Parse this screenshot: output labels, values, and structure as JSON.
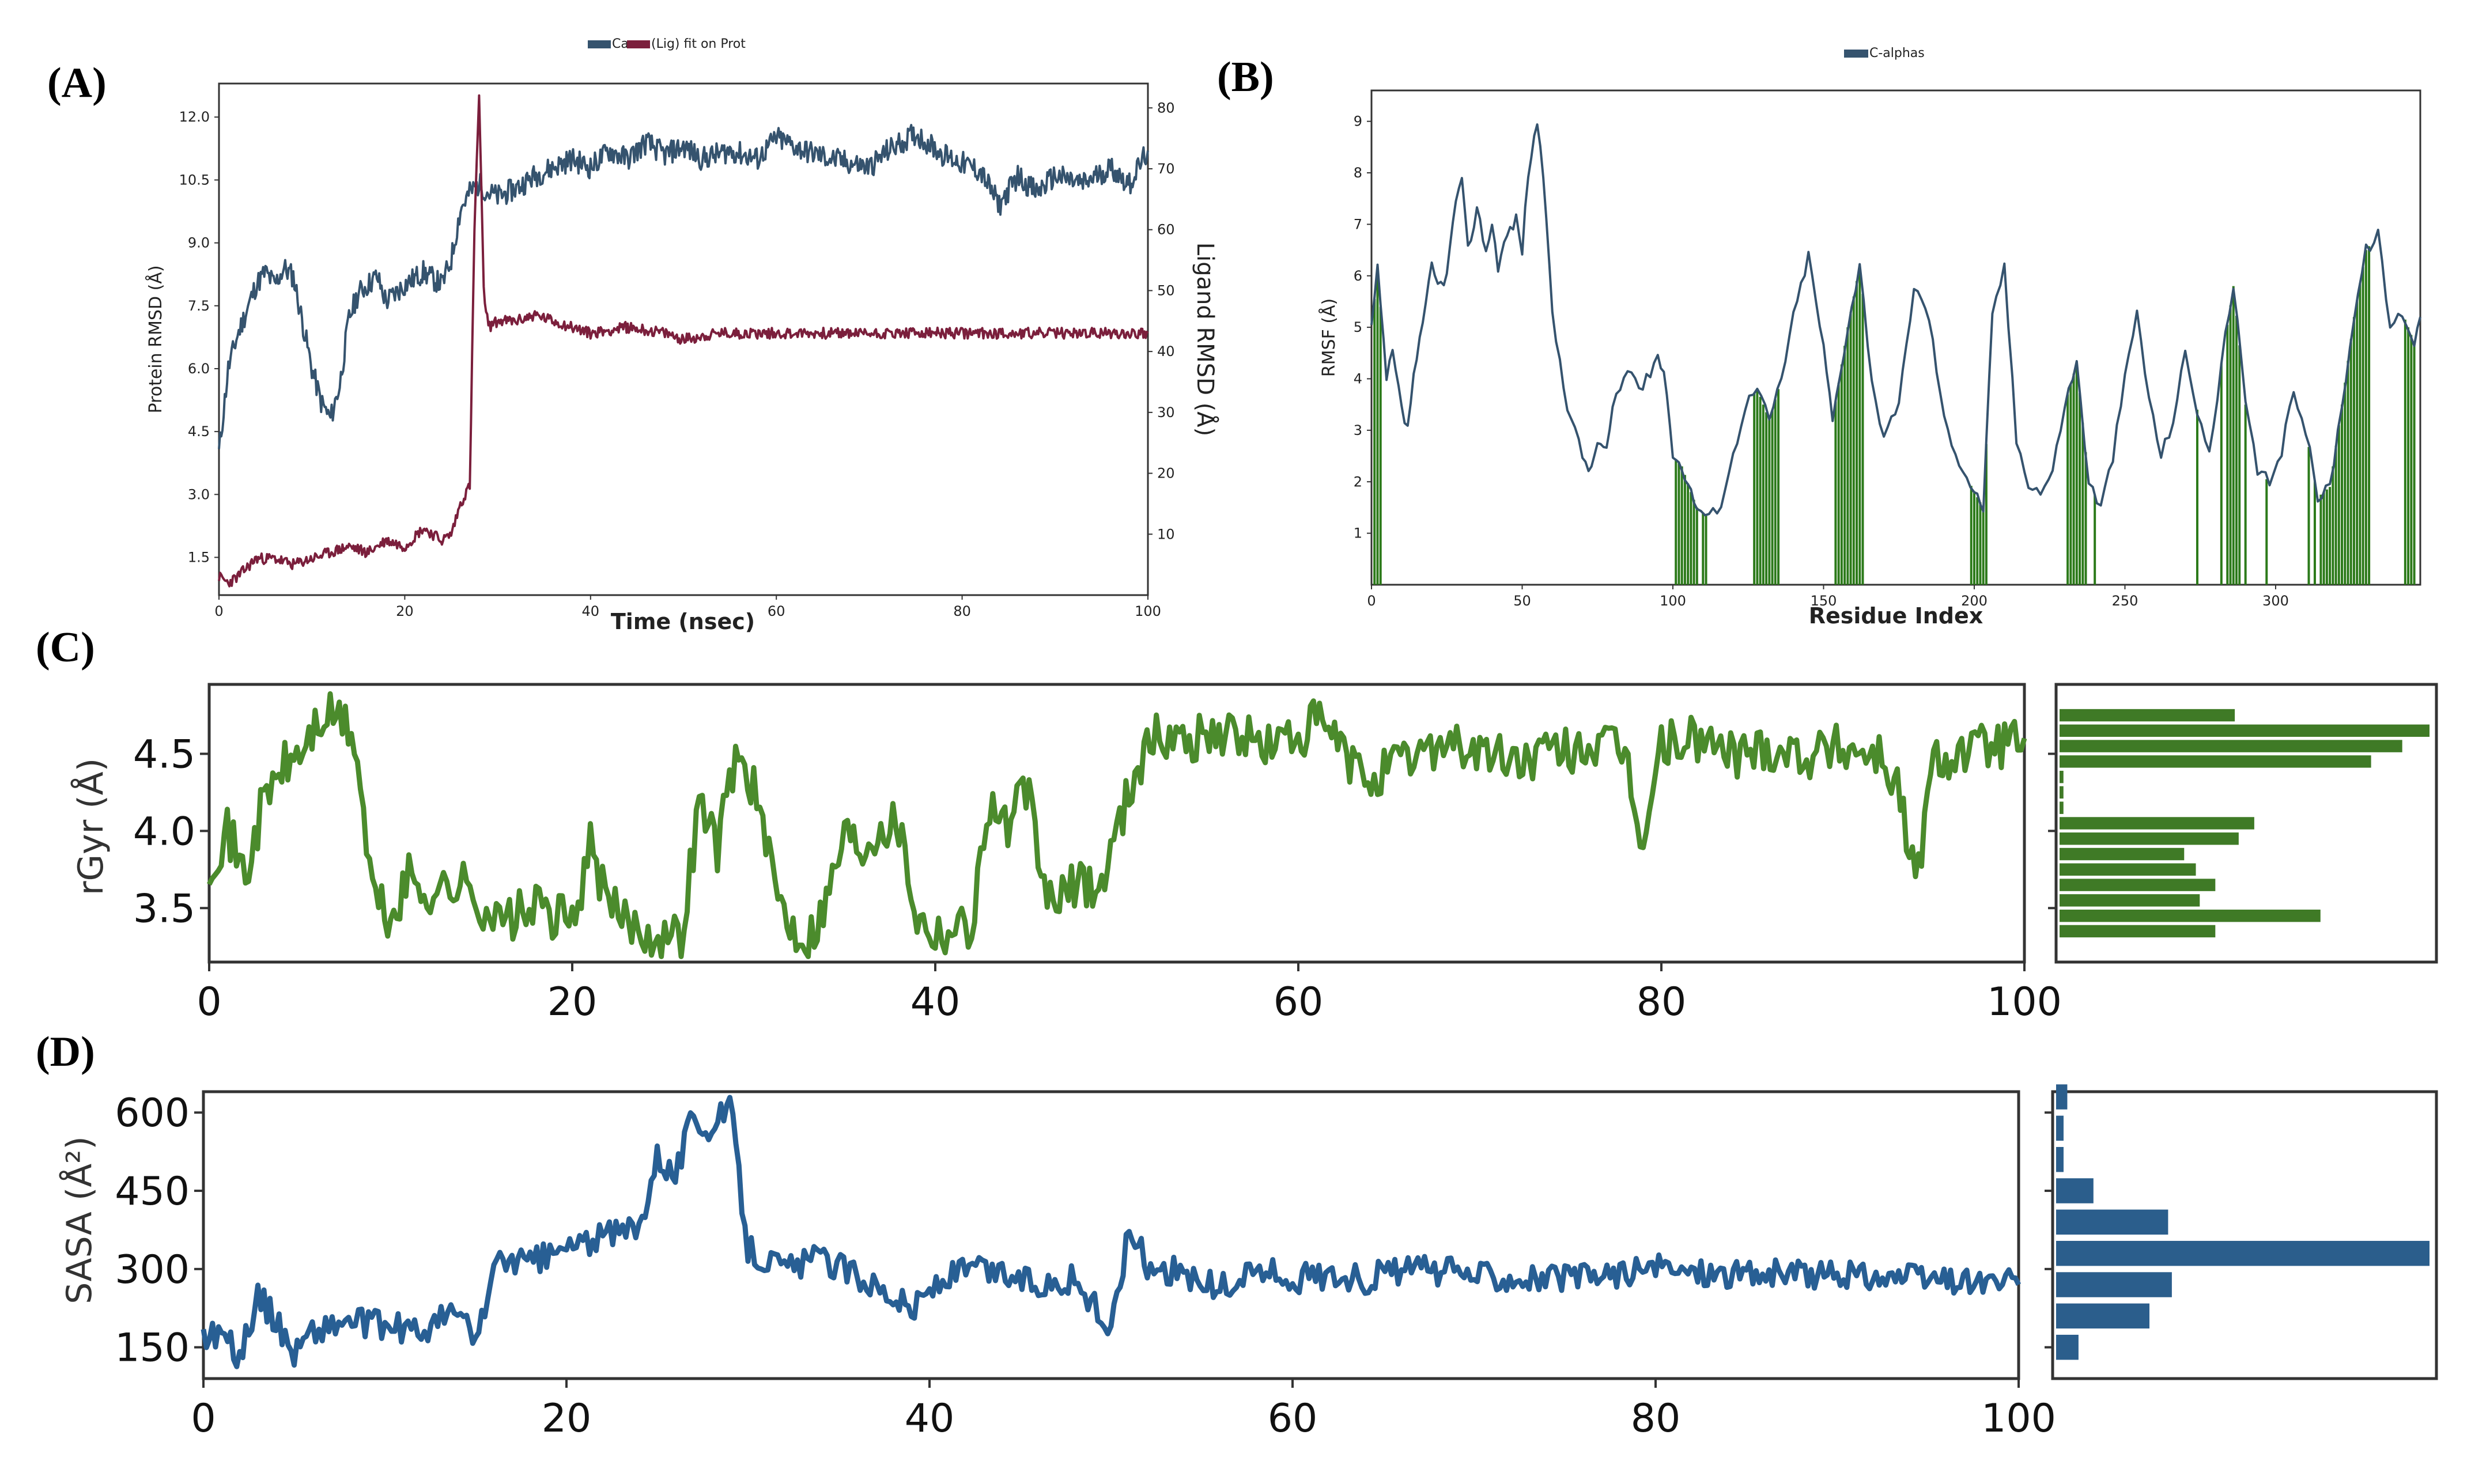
{
  "figure": {
    "colors": {
      "protein": "#35536e",
      "ligand": "#7b1f3c",
      "rmsf": "#35536e",
      "contact": "#2c7a1a",
      "rgyr": "#4b8b2c",
      "rgyr_hist": "#3f7a26",
      "sasa": "#285f94",
      "sasa_hist": "#2b5e8c"
    }
  },
  "chart_data": [
    {
      "id": "A",
      "panel_label": "(A)",
      "type": "line",
      "legend": [
        "Ca",
        "(Lig) fit on Prot"
      ],
      "xlabel": "Time (nsec)",
      "ylabel": "Protein RMSD (Å)",
      "y2label": "Ligand RMSD (Å)",
      "xlim": [
        0,
        100
      ],
      "ylim": [
        0.6,
        12.8
      ],
      "y2lim": [
        0,
        84
      ],
      "xticks": [
        0,
        20,
        40,
        60,
        80,
        100
      ],
      "yticks": [
        "1.5",
        "3.0",
        "4.5",
        "6.0",
        "7.5",
        "9.0",
        "10.5",
        "12.0"
      ],
      "y2ticks": [
        10,
        20,
        30,
        40,
        50,
        60,
        70,
        80
      ],
      "series": [
        {
          "name": "Ca",
          "axis": "left",
          "x": [
            0,
            1,
            2,
            3,
            4,
            5,
            6,
            7,
            8,
            10,
            11,
            12,
            13,
            14,
            15,
            17,
            18,
            20,
            22,
            24,
            25,
            26,
            27,
            28,
            29,
            30,
            32,
            34,
            36,
            38,
            40,
            42,
            44,
            46,
            48,
            50,
            52,
            55,
            58,
            60,
            63,
            66,
            70,
            72,
            75,
            78,
            80,
            82,
            84,
            86,
            88,
            90,
            93,
            96,
            98,
            100
          ],
          "y": [
            4.0,
            6.0,
            6.8,
            7.4,
            8.0,
            8.3,
            8.0,
            8.4,
            8.2,
            6.0,
            5.2,
            4.8,
            5.6,
            7.2,
            7.8,
            8.2,
            7.6,
            8.0,
            8.3,
            8.0,
            8.6,
            9.8,
            10.2,
            10.4,
            10.2,
            10.1,
            10.3,
            10.6,
            10.8,
            11.0,
            10.8,
            11.2,
            11.0,
            11.4,
            11.1,
            11.3,
            11.0,
            11.2,
            11.0,
            11.5,
            11.2,
            11.0,
            10.8,
            11.2,
            11.6,
            11.1,
            10.9,
            10.7,
            9.9,
            10.6,
            10.2,
            10.6,
            10.4,
            10.8,
            10.4,
            11.2
          ]
        },
        {
          "name": "(Lig) fit on Prot",
          "axis": "right",
          "x": [
            0,
            1,
            2,
            4,
            6,
            8,
            10,
            12,
            14,
            16,
            18,
            20,
            22,
            24,
            25,
            26,
            27,
            27.5,
            28,
            28.5,
            29,
            30,
            32,
            34,
            36,
            38,
            40,
            44,
            48,
            50,
            54,
            60,
            70,
            80,
            90,
            100
          ],
          "y": [
            3,
            2,
            3,
            6,
            6,
            5,
            6,
            7,
            8,
            7,
            9,
            8,
            11,
            9,
            10,
            15,
            18,
            60,
            82,
            50,
            44,
            45,
            45,
            46,
            45,
            44,
            43,
            44,
            43,
            42,
            43,
            43,
            43,
            43,
            43,
            43
          ]
        }
      ]
    },
    {
      "id": "B",
      "panel_label": "(B)",
      "type": "line",
      "legend": [
        "C-alphas"
      ],
      "xlabel": "Residue Index",
      "ylabel": "RMSF (Å)",
      "xlim": [
        0,
        348
      ],
      "ylim": [
        0,
        9.6
      ],
      "xticks": [
        0,
        50,
        100,
        150,
        200,
        250,
        300
      ],
      "yticks": [
        1,
        2,
        3,
        4,
        5,
        6,
        7,
        8,
        9
      ],
      "series": [
        {
          "name": "C-alphas",
          "x": [
            0,
            2,
            5,
            7,
            10,
            12,
            14,
            17,
            20,
            22,
            25,
            28,
            30,
            32,
            35,
            38,
            40,
            42,
            45,
            48,
            50,
            52,
            55,
            58,
            60,
            65,
            70,
            73,
            75,
            78,
            80,
            85,
            90,
            95,
            98,
            100,
            103,
            106,
            108,
            112,
            116,
            120,
            124,
            128,
            132,
            136,
            140,
            145,
            150,
            153,
            158,
            162,
            166,
            170,
            175,
            180,
            185,
            190,
            195,
            200,
            203,
            206,
            210,
            214,
            218,
            222,
            226,
            230,
            234,
            238,
            242,
            246,
            250,
            254,
            258,
            262,
            266,
            270,
            274,
            278,
            282,
            286,
            290,
            294,
            298,
            302,
            306,
            310,
            314,
            318,
            322,
            326,
            330,
            334,
            338,
            342,
            346,
            348
          ],
          "y": [
            5.0,
            6.1,
            4.0,
            4.5,
            3.4,
            3.0,
            4.1,
            5.0,
            6.2,
            5.8,
            6.0,
            7.5,
            7.8,
            6.5,
            7.3,
            6.5,
            7.0,
            6.2,
            6.8,
            7.1,
            6.5,
            8.0,
            9.0,
            7.2,
            5.2,
            3.5,
            2.5,
            2.2,
            2.8,
            2.6,
            3.4,
            4.2,
            3.8,
            4.5,
            3.8,
            2.5,
            2.3,
            1.8,
            1.5,
            1.3,
            1.6,
            2.5,
            3.5,
            3.8,
            3.2,
            4.0,
            5.2,
            6.4,
            4.6,
            3.2,
            5.0,
            6.2,
            4.0,
            2.8,
            3.5,
            5.8,
            5.2,
            3.2,
            2.4,
            1.8,
            1.5,
            5.2,
            6.2,
            2.8,
            2.0,
            1.8,
            2.2,
            3.5,
            4.3,
            2.0,
            1.5,
            2.5,
            4.0,
            5.3,
            3.6,
            2.5,
            3.2,
            4.5,
            3.4,
            2.5,
            4.3,
            5.8,
            3.5,
            2.2,
            2.0,
            2.6,
            3.8,
            3.0,
            1.7,
            1.9,
            3.5,
            5.2,
            6.5,
            6.8,
            5.0,
            5.3,
            4.7,
            5.2
          ]
        }
      ],
      "contact_residues": [
        1,
        2,
        3,
        101,
        102,
        103,
        104,
        105,
        106,
        107,
        108,
        110,
        111,
        127,
        128,
        129,
        130,
        131,
        132,
        133,
        134,
        135,
        154,
        155,
        156,
        157,
        158,
        159,
        160,
        161,
        162,
        163,
        199,
        200,
        201,
        202,
        203,
        204,
        231,
        232,
        233,
        234,
        235,
        236,
        237,
        240,
        274,
        282,
        284,
        285,
        286,
        287,
        288,
        290,
        297,
        311,
        313,
        315,
        316,
        317,
        318,
        319,
        320,
        321,
        322,
        323,
        324,
        325,
        326,
        327,
        328,
        329,
        330,
        331,
        343,
        344,
        345,
        346
      ]
    },
    {
      "id": "C",
      "panel_label": "(C)",
      "type": "line",
      "ylabel": "rGyr (Å)",
      "xlim": [
        0,
        100
      ],
      "ylim": [
        3.15,
        4.95
      ],
      "xticks": [
        0,
        20,
        40,
        60,
        80,
        100
      ],
      "yticks": [
        "3.5",
        "4.0",
        "4.5"
      ],
      "series": [
        {
          "name": "rGyr",
          "x": [
            0,
            1,
            2,
            3,
            4,
            5,
            6,
            7,
            8,
            9,
            10,
            11,
            12,
            14,
            16,
            18,
            20,
            21,
            22,
            24,
            26,
            27,
            28,
            29,
            30,
            31,
            32,
            33,
            34,
            35,
            36,
            37,
            38,
            39,
            40,
            42,
            43,
            44,
            45,
            46,
            47,
            48,
            49,
            50,
            51,
            52,
            54,
            56,
            58,
            60,
            61,
            62,
            63,
            64,
            66,
            68,
            70,
            72,
            74,
            76,
            78,
            79,
            80,
            82,
            84,
            86,
            88,
            90,
            92,
            93,
            94,
            95,
            96,
            98,
            100
          ],
          "y": [
            3.8,
            4.0,
            3.7,
            4.2,
            4.4,
            4.5,
            4.7,
            4.75,
            4.6,
            3.6,
            3.4,
            3.7,
            3.6,
            3.65,
            3.4,
            3.5,
            3.4,
            3.9,
            3.5,
            3.35,
            3.3,
            4.2,
            3.9,
            4.5,
            4.3,
            3.7,
            3.4,
            3.3,
            3.55,
            4.0,
            3.9,
            4.05,
            4.05,
            3.45,
            3.35,
            3.4,
            4.2,
            4.0,
            4.3,
            3.6,
            3.55,
            3.7,
            3.6,
            4.0,
            4.4,
            4.6,
            4.6,
            4.65,
            4.55,
            4.6,
            4.7,
            4.6,
            4.4,
            4.35,
            4.45,
            4.6,
            4.5,
            4.45,
            4.5,
            4.55,
            4.5,
            3.9,
            4.55,
            4.6,
            4.5,
            4.55,
            4.5,
            4.55,
            4.5,
            4.3,
            3.65,
            4.45,
            4.5,
            4.55,
            4.6
          ]
        }
      ],
      "histogram": {
        "orientation": "horizontal",
        "bins": [
          3.3,
          3.4,
          3.5,
          3.6,
          3.7,
          3.8,
          3.9,
          4.0,
          4.1,
          4.2,
          4.3,
          4.4,
          4.5,
          4.6,
          4.7
        ],
        "counts": [
          40,
          67,
          36,
          40,
          35,
          32,
          46,
          50,
          1,
          1,
          1,
          80,
          88,
          95,
          45
        ]
      }
    },
    {
      "id": "D",
      "panel_label": "(D)",
      "type": "line",
      "ylabel": "SASA (Å²)",
      "xlim": [
        0,
        100
      ],
      "ylim": [
        90,
        640
      ],
      "xticks": [
        0,
        20,
        40,
        60,
        80,
        100
      ],
      "yticks": [
        150,
        300,
        450,
        600
      ],
      "series": [
        {
          "name": "SASA",
          "x": [
            0,
            1,
            2,
            3,
            4,
            5,
            6,
            8,
            10,
            12,
            14,
            15,
            16,
            17,
            18,
            20,
            22,
            24,
            25,
            26,
            27,
            28,
            29,
            30,
            32,
            34,
            36,
            38,
            39,
            40,
            42,
            44,
            46,
            48,
            50,
            51,
            52,
            54,
            56,
            58,
            60,
            62,
            64,
            66,
            70,
            75,
            80,
            85,
            90,
            95,
            100
          ],
          "y": [
            170,
            180,
            130,
            250,
            200,
            140,
            180,
            200,
            190,
            180,
            220,
            160,
            300,
            320,
            310,
            340,
            360,
            380,
            520,
            480,
            600,
            560,
            620,
            340,
            300,
            320,
            290,
            250,
            220,
            260,
            300,
            290,
            270,
            280,
            180,
            380,
            310,
            290,
            260,
            300,
            280,
            290,
            280,
            300,
            290,
            280,
            300,
            290,
            290,
            280,
            270
          ]
        }
      ],
      "histogram": {
        "orientation": "horizontal",
        "bins": [
          120,
          180,
          240,
          300,
          360,
          420,
          480,
          540,
          600
        ],
        "counts": [
          6,
          25,
          31,
          100,
          30,
          10,
          2,
          2,
          3
        ]
      }
    }
  ]
}
